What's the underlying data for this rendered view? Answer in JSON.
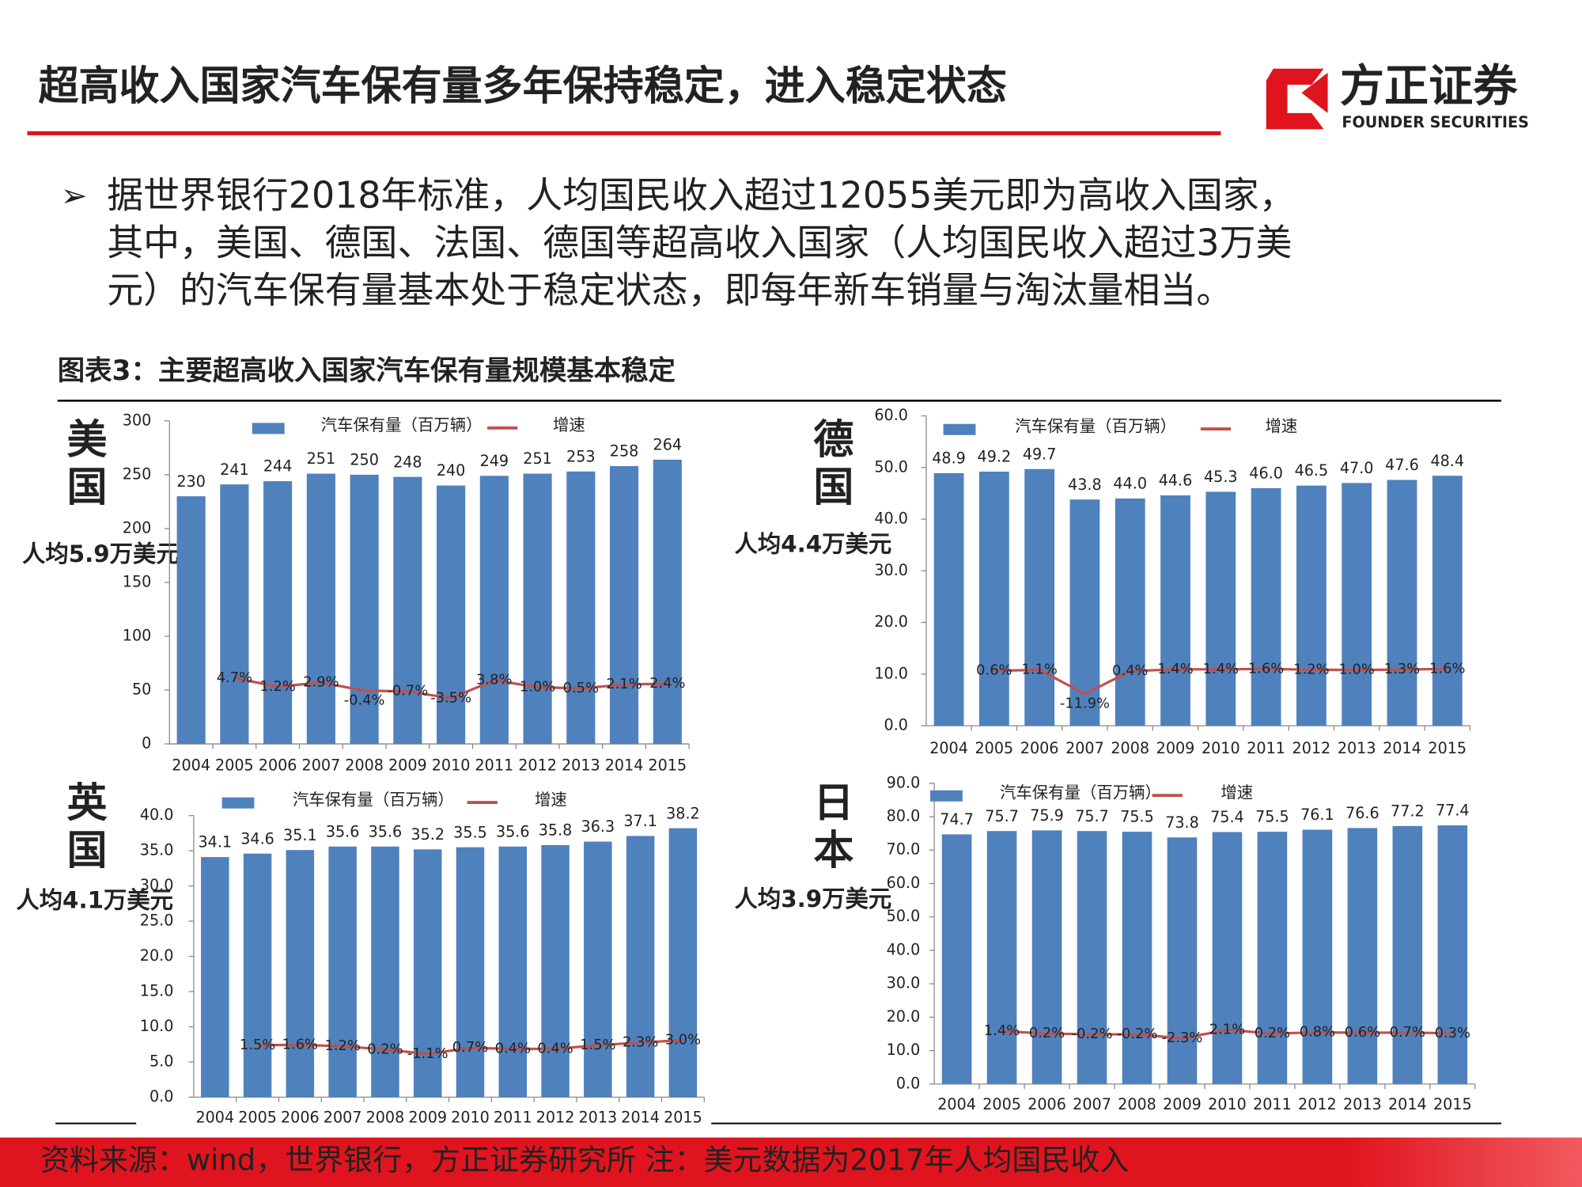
{
  "header": {
    "title": "超高收入国家汽车保有量多年保持稳定，进入稳定状态",
    "logo_text": "方正证券",
    "logo_subtext": "FOUNDER SECURITIES"
  },
  "bullet": {
    "lines": [
      "据世界银行2018年标准，人均国民收入超过12055美元即为高收入国家，",
      "其中，美国、德国、法国、德国等超高收入国家（人均国民收入超过3万美",
      "元）的汽车保有量基本处于稳定状态，即每年新车销量与淘汰量相当。"
    ]
  },
  "figure_title": "图表3：主要超高收入国家汽车保有量规模基本稳定",
  "chart_data": [
    {
      "type": "bar",
      "label": "美国",
      "annotation": "人均5.9万美元",
      "categories": [
        "2004",
        "2005",
        "2006",
        "2007",
        "2008",
        "2009",
        "2010",
        "2011",
        "2012",
        "2013",
        "2014",
        "2015"
      ],
      "series": [
        {
          "name": "汽车保有量（百万辆）",
          "type": "bar",
          "color": "#4f81bd",
          "values": [
            230,
            241,
            244,
            251,
            250,
            248,
            240,
            249,
            251,
            253,
            258,
            264
          ]
        },
        {
          "name": "增速",
          "type": "line",
          "axis": "y2",
          "color": "#c0504d",
          "values": [
            null,
            4.7,
            1.2,
            2.9,
            -0.4,
            -0.7,
            -3.5,
            3.8,
            1.0,
            0.5,
            2.1,
            2.4
          ],
          "value_labels": [
            null,
            "4.7%",
            "1.2%",
            "2.9%",
            "-0.4%",
            "-0.7%",
            "-3.5%",
            "3.8%",
            "1.0%",
            "0.5%",
            "2.1%",
            "2.4%"
          ]
        }
      ],
      "ylim": [
        0,
        300
      ],
      "yticks": [
        0,
        50,
        100,
        150,
        200,
        250,
        300
      ],
      "y2lim": [
        -22,
        109
      ]
    },
    {
      "type": "bar",
      "label": "德国",
      "annotation": "人均4.4万美元",
      "categories": [
        "2004",
        "2005",
        "2006",
        "2007",
        "2008",
        "2009",
        "2010",
        "2011",
        "2012",
        "2013",
        "2014",
        "2015"
      ],
      "series": [
        {
          "name": "汽车保有量（百万辆）",
          "type": "bar",
          "color": "#4f81bd",
          "values": [
            48.9,
            49.2,
            49.7,
            43.8,
            44.0,
            44.6,
            45.3,
            46.0,
            46.5,
            47.0,
            47.6,
            48.4
          ],
          "value_labels": [
            "48.9",
            "49.2",
            "49.7",
            "43.8",
            "44.0",
            "44.6",
            "45.3",
            "46.0",
            "46.5",
            "47.0",
            "47.6",
            "48.4"
          ]
        },
        {
          "name": "增速",
          "type": "line",
          "axis": "y2",
          "color": "#c0504d",
          "values": [
            null,
            0.6,
            1.1,
            -11.9,
            0.4,
            1.4,
            1.4,
            1.6,
            1.2,
            1.0,
            1.3,
            1.6
          ],
          "value_labels": [
            null,
            "0.6%",
            "1.1%",
            "-11.9%",
            "0.4%",
            "1.4%",
            "1.4%",
            "1.6%",
            "1.2%",
            "1.0%",
            "1.3%",
            "1.6%"
          ]
        }
      ],
      "ylim": [
        0,
        60
      ],
      "yticks": [
        {
          "value": 0,
          "label": "0.0"
        },
        {
          "value": 10,
          "label": "10.0"
        },
        {
          "value": 20,
          "label": "20.0"
        },
        {
          "value": 30,
          "label": "30.0"
        },
        {
          "value": 40,
          "label": "40.0"
        },
        {
          "value": 50,
          "label": "50.0"
        },
        {
          "value": 60,
          "label": "60.0"
        }
      ],
      "y2lim": [
        -29,
        138
      ]
    },
    {
      "type": "bar",
      "label": "英国",
      "annotation": "人均4.1万美元",
      "categories": [
        "2004",
        "2005",
        "2006",
        "2007",
        "2008",
        "2009",
        "2010",
        "2011",
        "2012",
        "2013",
        "2014",
        "2015"
      ],
      "series": [
        {
          "name": "汽车保有量（百万辆）",
          "type": "bar",
          "color": "#4f81bd",
          "values": [
            34.1,
            34.6,
            35.1,
            35.6,
            35.6,
            35.2,
            35.5,
            35.6,
            35.8,
            36.3,
            37.1,
            38.2
          ]
        },
        {
          "name": "增速",
          "type": "line",
          "axis": "y2",
          "color": "#c0504d",
          "values": [
            null,
            1.5,
            1.6,
            1.2,
            0.2,
            -1.1,
            0.7,
            0.4,
            0.4,
            1.5,
            2.3,
            3.0
          ],
          "value_labels": [
            null,
            "1.5%",
            "1.6%",
            "1.2%",
            "0.2%",
            "-1.1%",
            "0.7%",
            "0.4%",
            "0.4%",
            "1.5%",
            "2.3%",
            "3.0%"
          ]
        }
      ],
      "ylim": [
        0,
        40
      ],
      "yticks": [
        {
          "value": 0,
          "label": "0.0"
        },
        {
          "value": 5,
          "label": "5.0"
        },
        {
          "value": 10,
          "label": "10.0"
        },
        {
          "value": 15,
          "label": "15.0"
        },
        {
          "value": 20,
          "label": "20.0"
        },
        {
          "value": 25,
          "label": "25.0"
        },
        {
          "value": 30,
          "label": "30.0"
        },
        {
          "value": 35,
          "label": "35.0"
        },
        {
          "value": 40,
          "label": "40.0"
        }
      ],
      "y2lim": [
        -14,
        70
      ]
    },
    {
      "type": "bar",
      "label": "日本",
      "annotation": "人均3.9万美元",
      "categories": [
        "2004",
        "2005",
        "2006",
        "2007",
        "2008",
        "2009",
        "2010",
        "2011",
        "2012",
        "2013",
        "2014",
        "2015"
      ],
      "series": [
        {
          "name": "汽车保有量（百万辆）",
          "type": "bar",
          "color": "#4f81bd",
          "values": [
            74.7,
            75.7,
            75.9,
            75.7,
            75.5,
            73.8,
            75.4,
            75.5,
            76.1,
            76.6,
            77.2,
            77.4
          ]
        },
        {
          "name": "增速",
          "type": "line",
          "axis": "y2",
          "color": "#c0504d",
          "values": [
            null,
            1.4,
            0.2,
            -0.2,
            -0.2,
            -2.3,
            2.1,
            0.2,
            0.8,
            0.6,
            0.7,
            0.3
          ],
          "value_labels": [
            null,
            "1.4%",
            "0.2%",
            "-0.2%",
            "-0.2%",
            "-2.3%",
            "2.1%",
            "0.2%",
            "0.8%",
            "0.6%",
            "0.7%",
            "0.3%"
          ]
        }
      ],
      "ylim": [
        0,
        90
      ],
      "yticks": [
        {
          "value": 0,
          "label": "0.0"
        },
        {
          "value": 10,
          "label": "10.0"
        },
        {
          "value": 20,
          "label": "20.0"
        },
        {
          "value": 30,
          "label": "30.0"
        },
        {
          "value": 40,
          "label": "40.0"
        },
        {
          "value": 50,
          "label": "50.0"
        },
        {
          "value": 60,
          "label": "60.0"
        },
        {
          "value": 70,
          "label": "70.0"
        },
        {
          "value": 80,
          "label": "80.0"
        },
        {
          "value": 90,
          "label": "90.0"
        }
      ],
      "y2lim": [
        -26,
        130
      ]
    }
  ],
  "footer": {
    "source": "资料来源：wind，世界银行，方正证券研究所 注：美元数据为2017年人均国民收入"
  }
}
